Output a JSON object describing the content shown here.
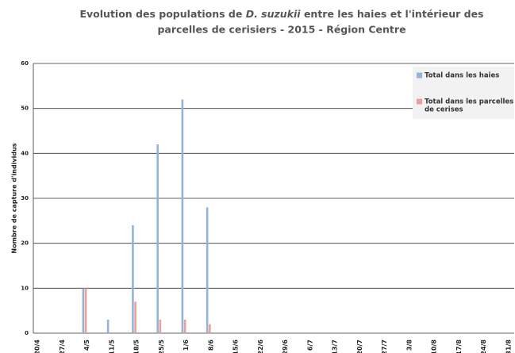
{
  "chart_data": {
    "type": "bar",
    "title": [
      "Evolution des populations de",
      "D. suzukii",
      "entre les haies et l'intérieur des",
      "parcelles de cerisiers - 2015 -  Région Centre"
    ],
    "y_label": "Nombre de capture d'individus",
    "categories": [
      "20/4",
      "27/4",
      "4/5",
      "11/5",
      "18/5",
      "25/5",
      "1/6",
      "8/6",
      "15/6",
      "22/6",
      "29/6",
      "6/7",
      "13/7",
      "20/7",
      "27/7",
      "3/8",
      "10/8",
      "17/8",
      "24/8",
      "31/8"
    ],
    "series": [
      {
        "name": "Total dans les haies",
        "color": "#95b3d7",
        "values": [
          0,
          0,
          10,
          3,
          24,
          42,
          52,
          28,
          0,
          0,
          0,
          0,
          0,
          0,
          0,
          0,
          0,
          0,
          0,
          0
        ]
      },
      {
        "name": [
          "Total dans les parcelles",
          "de cerises"
        ],
        "color": "#e6a19e",
        "values": [
          0,
          0,
          10,
          0,
          7,
          3,
          3,
          2,
          0,
          0,
          0,
          0,
          0,
          0,
          0,
          0,
          0,
          0,
          0,
          0
        ]
      }
    ],
    "ylim": [
      0,
      60
    ],
    "yticks": [
      0,
      10,
      20,
      30,
      40,
      50,
      60
    ],
    "grid": true,
    "legend": "top-right"
  }
}
